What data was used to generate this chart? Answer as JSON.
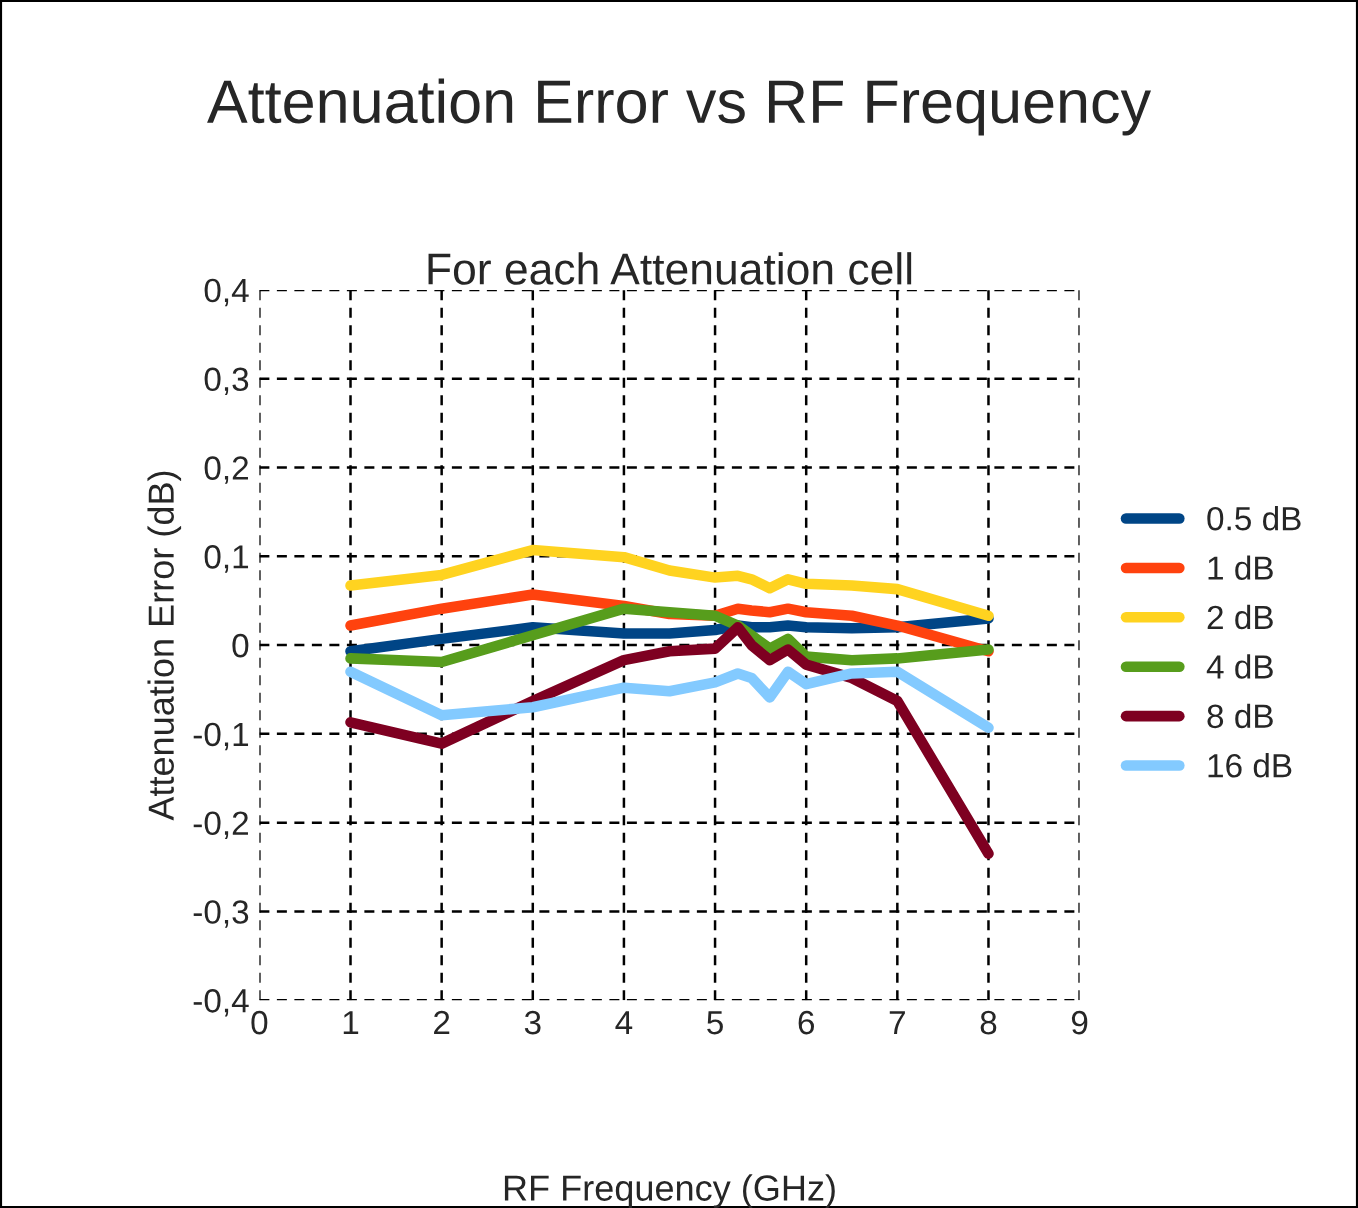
{
  "chart_data": {
    "type": "line",
    "title": "Attenuation Error vs RF Frequency",
    "subtitle": "For each Attenuation cell",
    "xlabel": "RF Frequency (GHz)",
    "ylabel": "Attenuation Error (dB)",
    "x": [
      1,
      2,
      3,
      4,
      4.5,
      5,
      5.25,
      5.4,
      5.6,
      5.8,
      6,
      6.5,
      7,
      8
    ],
    "series": [
      {
        "name": "0.5 dB",
        "color": "#004586",
        "values": [
          -0.007,
          0.007,
          0.02,
          0.013,
          0.013,
          0.017,
          0.022,
          0.02,
          0.02,
          0.022,
          0.02,
          0.019,
          0.02,
          0.03
        ]
      },
      {
        "name": "1 dB",
        "color": "#ff420e",
        "values": [
          0.022,
          0.041,
          0.057,
          0.044,
          0.035,
          0.033,
          0.041,
          0.039,
          0.037,
          0.041,
          0.037,
          0.033,
          0.022,
          -0.007
        ]
      },
      {
        "name": "2 dB",
        "color": "#ffd320",
        "values": [
          0.067,
          0.079,
          0.107,
          0.099,
          0.084,
          0.076,
          0.078,
          0.074,
          0.064,
          0.074,
          0.069,
          0.067,
          0.063,
          0.033
        ]
      },
      {
        "name": "4 dB",
        "color": "#579d1c",
        "values": [
          -0.015,
          -0.019,
          0.011,
          0.041,
          0.037,
          0.033,
          0.022,
          0.011,
          -0.004,
          0.007,
          -0.013,
          -0.017,
          -0.015,
          -0.005
        ]
      },
      {
        "name": "8 dB",
        "color": "#7e0021",
        "values": [
          -0.087,
          -0.111,
          -0.063,
          -0.017,
          -0.007,
          -0.004,
          0.02,
          0,
          -0.017,
          -0.005,
          -0.022,
          -0.037,
          -0.063,
          -0.235
        ]
      },
      {
        "name": "16 dB",
        "color": "#83caff",
        "values": [
          -0.03,
          -0.079,
          -0.07,
          -0.048,
          -0.052,
          -0.042,
          -0.032,
          -0.037,
          -0.059,
          -0.03,
          -0.044,
          -0.032,
          -0.03,
          -0.093
        ]
      }
    ],
    "xlim": [
      0,
      9
    ],
    "xticks": [
      0,
      1,
      2,
      3,
      4,
      5,
      6,
      7,
      8,
      9
    ],
    "ylim": [
      -0.4,
      0.4
    ],
    "yticks": [
      {
        "value": -0.4,
        "label": "-0,4"
      },
      {
        "value": -0.3,
        "label": "-0,3"
      },
      {
        "value": -0.2,
        "label": "-0,2"
      },
      {
        "value": -0.1,
        "label": "-0,1"
      },
      {
        "value": 0,
        "label": "0"
      },
      {
        "value": 0.1,
        "label": "0,1"
      },
      {
        "value": 0.2,
        "label": "0,2"
      },
      {
        "value": 0.3,
        "label": "0,3"
      },
      {
        "value": 0.4,
        "label": "0,4"
      }
    ],
    "grid": true,
    "legend": "right",
    "marker": "none",
    "line_style": "solid"
  }
}
